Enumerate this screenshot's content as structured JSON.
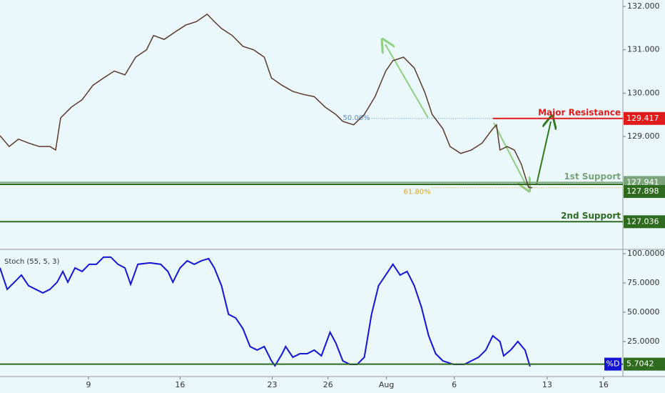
{
  "chart_data": [
    {
      "type": "line",
      "x": [
        0,
        0.5,
        1.0,
        1.55,
        2.13,
        2.71,
        3.02,
        3.29,
        3.88,
        4.46,
        5.04,
        5.62,
        6.2,
        6.78,
        7.36,
        7.95,
        8.33,
        8.91,
        9.5,
        10.08,
        10.66,
        11.24,
        11.63,
        12.02,
        12.6,
        13.18,
        13.76,
        14.34,
        14.73,
        15.31,
        15.89,
        16.47,
        17.05,
        17.64,
        18.22,
        18.6,
        19.19,
        19.77,
        20.35,
        20.93,
        21.32,
        21.9,
        22.48,
        23.06,
        23.45,
        24.03,
        24.42,
        25.0,
        25.58,
        26.16,
        26.74,
        26.94,
        27.13,
        27.52,
        27.91,
        28.29,
        28.68,
        28.88
      ],
      "values": [
        129.02,
        128.77,
        128.94,
        128.85,
        128.77,
        128.77,
        128.69,
        129.43,
        129.68,
        129.85,
        130.18,
        130.35,
        130.51,
        130.42,
        130.83,
        131.0,
        131.33,
        131.24,
        131.41,
        131.57,
        131.65,
        131.82,
        131.65,
        131.49,
        131.33,
        131.08,
        131.0,
        130.83,
        130.35,
        130.18,
        130.04,
        129.97,
        129.92,
        129.68,
        129.51,
        129.35,
        129.27,
        129.51,
        129.92,
        130.51,
        130.75,
        130.83,
        130.58,
        130.01,
        129.51,
        129.18,
        128.77,
        128.61,
        128.69,
        128.85,
        129.18,
        129.27,
        128.69,
        128.77,
        128.69,
        128.36,
        127.83,
        127.82
      ],
      "color": "#5a3a2a",
      "xlim": [
        0,
        33.8
      ],
      "ylim": [
        126.415,
        132.148
      ],
      "yticks": [
        {
          "value": 132,
          "label": "132.000"
        },
        {
          "value": 131,
          "label": "131.000"
        },
        {
          "value": 130,
          "label": "130.000"
        },
        {
          "value": 129,
          "label": "129.000"
        }
      ],
      "levels": [
        {
          "label": "Major Resistance",
          "value": 129.417,
          "color": "#e01b1b",
          "x_start": 26.74
        },
        {
          "label": "1st Support",
          "value": 127.941,
          "color": "#7aa37a"
        },
        {
          "value": 127.898,
          "color": "#2f6b1f"
        },
        {
          "label": "2nd Support",
          "value": 127.036,
          "color": "#2f6b1f"
        }
      ],
      "fib": [
        {
          "label": "50.00%",
          "value": 129.417,
          "color": "#5b8fc9",
          "x_start": 20.16
        },
        {
          "label": "61.80%",
          "value": 127.82,
          "color": "#d9a520",
          "x_start": 23.45
        }
      ]
    },
    {
      "type": "line",
      "x": [
        0,
        0.39,
        0.78,
        1.16,
        1.55,
        1.94,
        2.33,
        2.71,
        3.1,
        3.41,
        3.68,
        4.07,
        4.46,
        4.84,
        5.23,
        5.62,
        6.01,
        6.4,
        6.78,
        7.09,
        7.48,
        8.14,
        8.72,
        9.11,
        9.38,
        9.77,
        10.16,
        10.54,
        10.93,
        11.32,
        11.63,
        12.02,
        12.4,
        12.79,
        13.18,
        13.57,
        13.95,
        14.34,
        14.73,
        14.92,
        15.31,
        15.5,
        15.89,
        16.28,
        16.67,
        17.05,
        17.44,
        17.91,
        18.22,
        18.6,
        18.99,
        19.38,
        19.77,
        20.16,
        20.54,
        20.93,
        21.32,
        21.71,
        22.09,
        22.48,
        22.87,
        23.26,
        23.64,
        24.03,
        24.61,
        25.19,
        25.58,
        25.97,
        26.36,
        26.74,
        27.13,
        27.33,
        27.71,
        28.1,
        28.49,
        28.76
      ],
      "series": [
        {
          "name": "Stoch (55, 5, 3)",
          "color": "#1414d2",
          "values": [
            87.8,
            69.5,
            75.6,
            81.7,
            72.6,
            69.5,
            66.5,
            69.5,
            75.6,
            84.8,
            75.6,
            87.8,
            84.8,
            90.9,
            90.9,
            97.0,
            97.0,
            90.9,
            87.8,
            73.8,
            90.9,
            92.1,
            90.9,
            84.8,
            75.6,
            87.8,
            93.9,
            90.9,
            93.9,
            95.7,
            87.8,
            72.6,
            48.2,
            45.1,
            36.0,
            20.7,
            17.7,
            20.7,
            8.5,
            4.3,
            14.6,
            20.7,
            11.6,
            14.6,
            14.6,
            17.7,
            12.8,
            32.9,
            23.8,
            8.5,
            5.5,
            5.5,
            11.6,
            48.2,
            72.6,
            81.7,
            90.9,
            81.7,
            84.8,
            72.6,
            54.3,
            29.9,
            14.6,
            8.5,
            5.5,
            5.5,
            8.5,
            11.6,
            17.7,
            29.9,
            25.0,
            12.8,
            17.7,
            25.0,
            17.7,
            3.7
          ]
        }
      ],
      "line_label": "%D",
      "level": {
        "value": 5.7042,
        "color": "#2f6b1f"
      },
      "xlim": [
        0,
        33.8
      ],
      "ylim": [
        -4.9,
        103.0
      ],
      "yticks": [
        {
          "value": 100,
          "label": "100.0000"
        },
        {
          "value": 75,
          "label": "75.0000"
        },
        {
          "value": 50,
          "label": "50.0000"
        },
        {
          "value": 25,
          "label": "25.0000"
        }
      ],
      "xticks": [
        {
          "value": 4.8,
          "label": "9"
        },
        {
          "value": 9.77,
          "label": "16"
        },
        {
          "value": 14.77,
          "label": "23"
        },
        {
          "value": 17.8,
          "label": "26"
        },
        {
          "value": 20.97,
          "label": "Aug"
        },
        {
          "value": 24.65,
          "label": "6"
        },
        {
          "value": 29.69,
          "label": "13"
        },
        {
          "value": 32.75,
          "label": "16"
        }
      ]
    }
  ]
}
